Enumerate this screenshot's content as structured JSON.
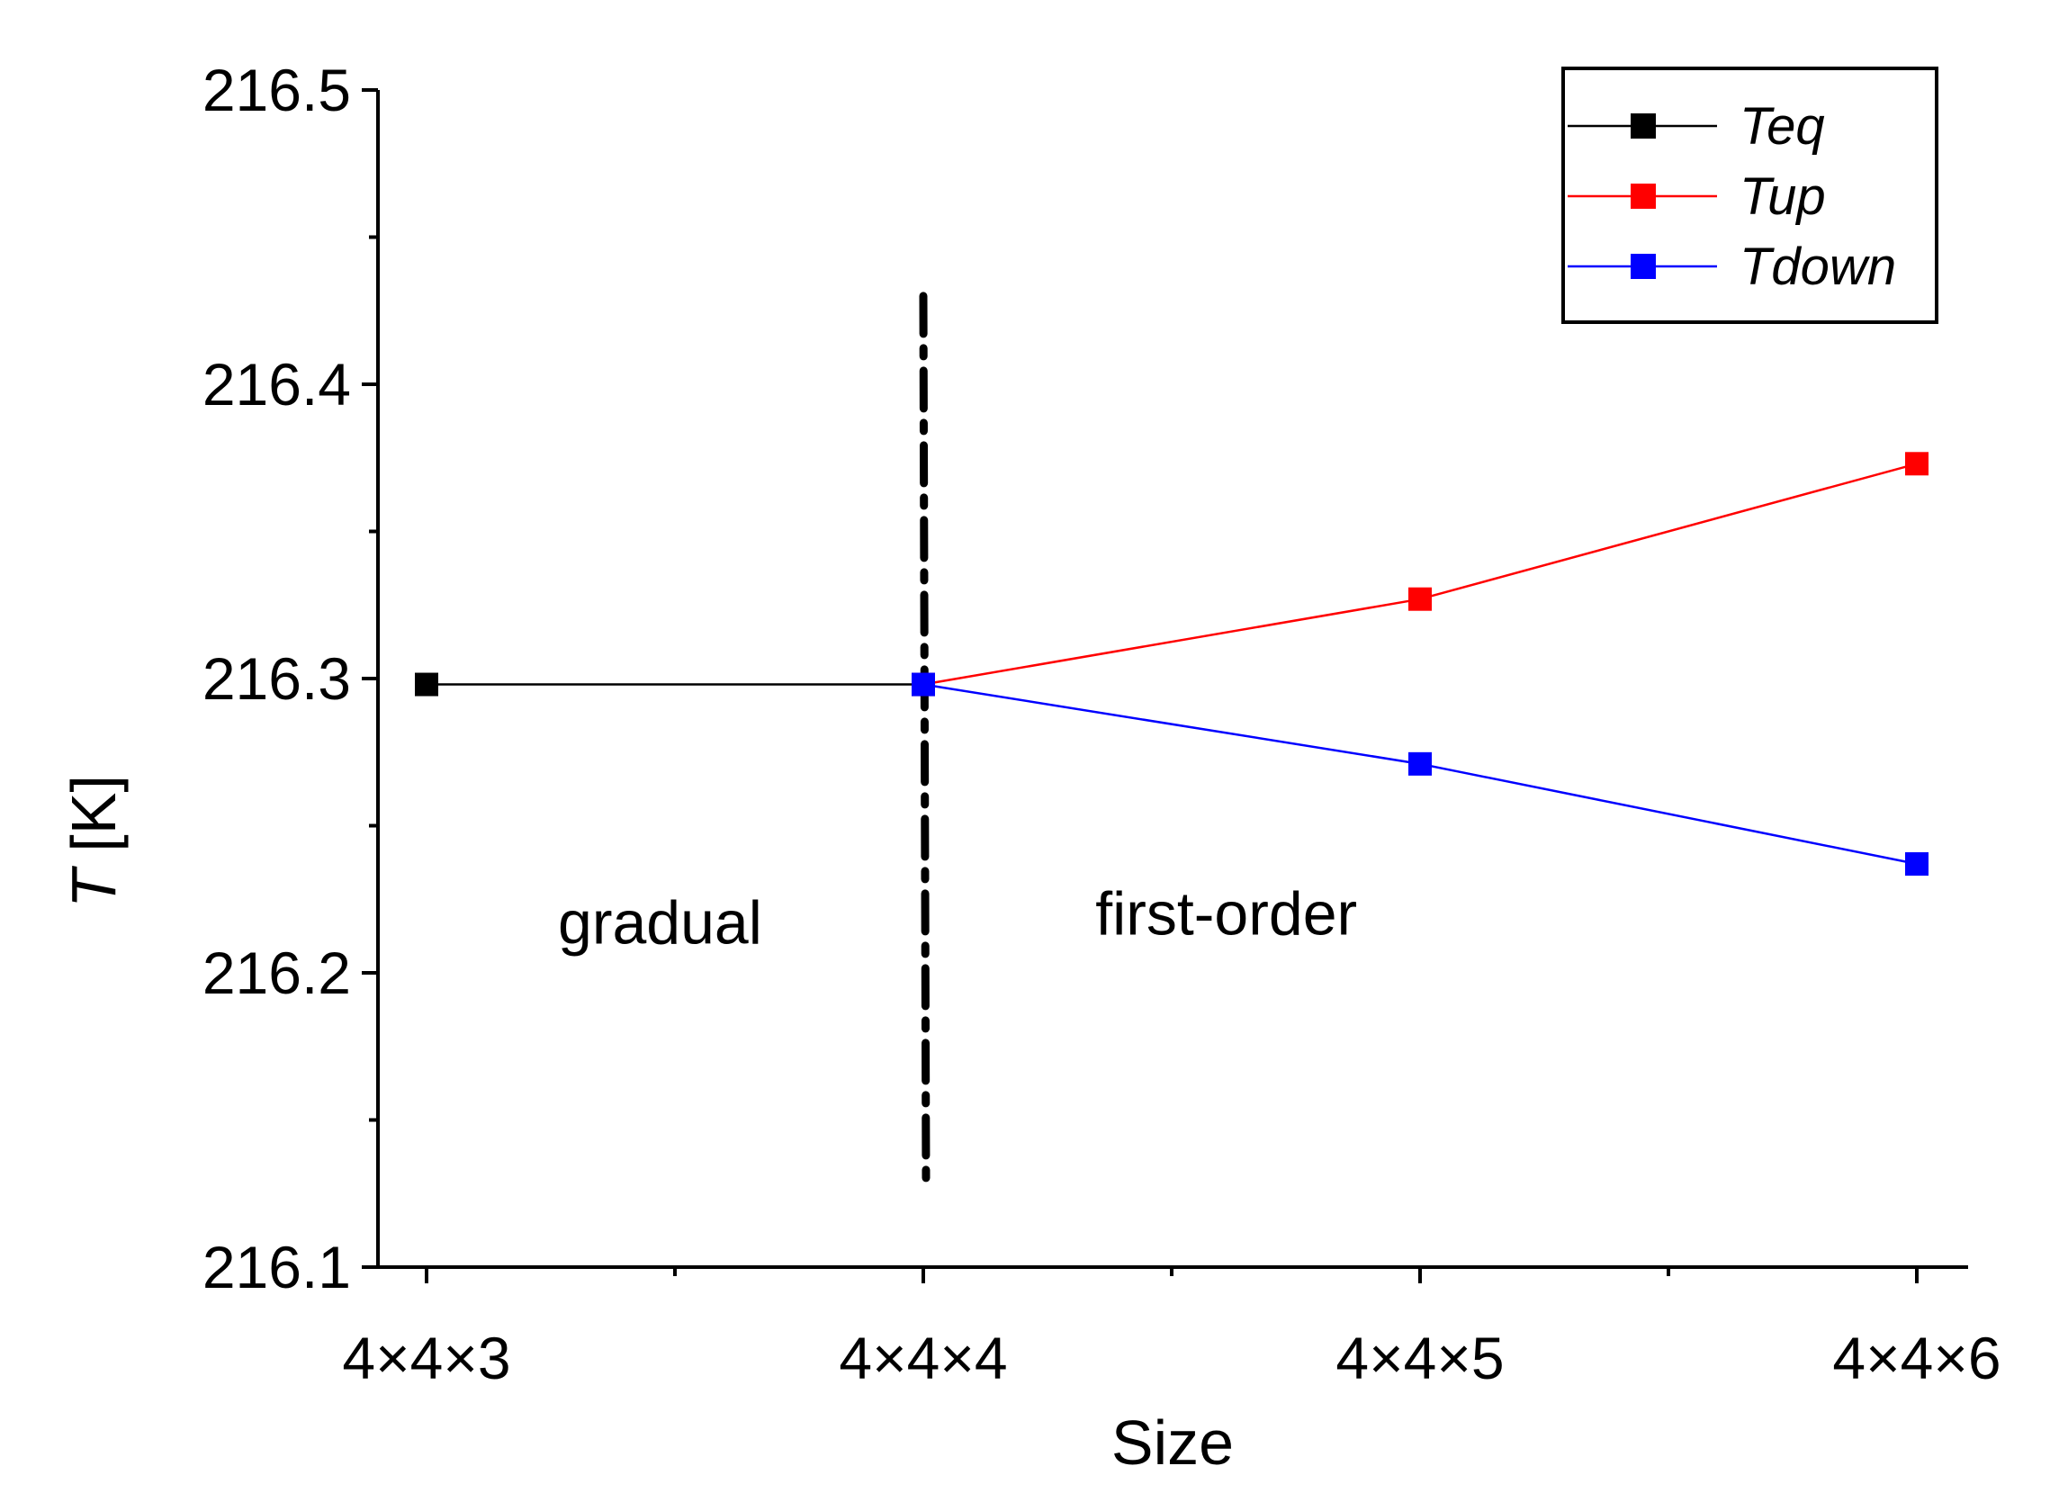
{
  "chart_data": {
    "type": "line",
    "xlabel": "Size",
    "ylabel_italic": "T",
    "ylabel_rest": " [K]",
    "categories": [
      "4×4×3",
      "4×4×4",
      "4×4×5",
      "4×4×6"
    ],
    "ylim": [
      216.1,
      216.5
    ],
    "yticks": [
      "216.1",
      "216.2",
      "216.3",
      "216.4",
      "216.5"
    ],
    "ytick_values": [
      216.1,
      216.2,
      216.3,
      216.4,
      216.5
    ],
    "grid": false,
    "legend_position": "top-right",
    "series": [
      {
        "name": "Teq",
        "color": "#000000",
        "points": [
          [
            0,
            216.298
          ],
          [
            1,
            216.298
          ]
        ]
      },
      {
        "name": "Tup",
        "color": "#ff0000",
        "points": [
          [
            1,
            216.298
          ],
          [
            2,
            216.327
          ],
          [
            3,
            216.373
          ]
        ]
      },
      {
        "name": "Tdown",
        "color": "#0000ff",
        "points": [
          [
            1,
            216.298
          ],
          [
            2,
            216.271
          ],
          [
            3,
            216.237
          ]
        ]
      }
    ],
    "vertical_line": {
      "x": 1,
      "y_from": 216.13,
      "y_to": 216.43,
      "style": "dash-dot"
    },
    "annotations": [
      {
        "text": "gradual",
        "x": 0.47,
        "y": 216.21
      },
      {
        "text": "first-order",
        "x": 1.61,
        "y": 216.213
      }
    ]
  }
}
